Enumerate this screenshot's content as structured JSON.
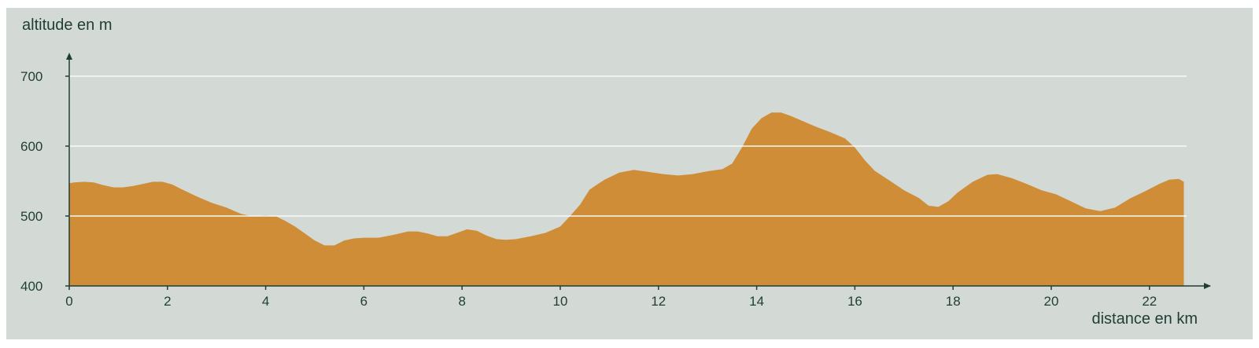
{
  "chart_data": {
    "type": "area",
    "ylabel": "altitude en m",
    "xlabel": "distance en km",
    "xlim": [
      0,
      23.2
    ],
    "ylim": [
      400,
      730
    ],
    "x_ticks": [
      0,
      2,
      4,
      6,
      8,
      10,
      12,
      14,
      16,
      18,
      20,
      22
    ],
    "y_ticks": [
      400,
      500,
      600,
      700
    ],
    "grid": "horizontal",
    "colors": {
      "background": "#d3dad6",
      "fill": "#d08d37",
      "axis": "#1f3d34",
      "grid": "#f4f6f3"
    },
    "series": [
      {
        "x": [
          0,
          0.1,
          0.3,
          0.5,
          0.7,
          0.9,
          1.1,
          1.3,
          1.5,
          1.7,
          1.9,
          2.1,
          2.3,
          2.6,
          2.9,
          3.2,
          3.5,
          3.7,
          4.0,
          4.2,
          4.4,
          4.6,
          4.8,
          5.0,
          5.2,
          5.4,
          5.6,
          5.8,
          6.0,
          6.3,
          6.6,
          6.9,
          7.1,
          7.3,
          7.5,
          7.7,
          7.9,
          8.1,
          8.3,
          8.5,
          8.7,
          8.9,
          9.1,
          9.4,
          9.7,
          10.0,
          10.2,
          10.4,
          10.6,
          10.9,
          11.2,
          11.5,
          11.8,
          12.1,
          12.4,
          12.7,
          13.0,
          13.3,
          13.5,
          13.7,
          13.9,
          14.1,
          14.3,
          14.5,
          14.7,
          14.9,
          15.2,
          15.5,
          15.8,
          16.0,
          16.2,
          16.4,
          16.7,
          17.0,
          17.3,
          17.5,
          17.7,
          17.9,
          18.1,
          18.4,
          18.7,
          18.9,
          19.2,
          19.5,
          19.8,
          20.1,
          20.4,
          20.7,
          21.0,
          21.3,
          21.6,
          21.9,
          22.2,
          22.4,
          22.6,
          22.7
        ],
        "values": [
          547,
          548,
          549,
          548,
          544,
          541,
          541,
          543,
          546,
          549,
          549,
          545,
          538,
          528,
          519,
          512,
          503,
          500,
          501,
          500,
          493,
          485,
          475,
          465,
          458,
          458,
          465,
          468,
          469,
          469,
          473,
          478,
          478,
          475,
          471,
          471,
          476,
          481,
          479,
          472,
          467,
          466,
          467,
          471,
          476,
          485,
          500,
          516,
          538,
          552,
          562,
          566,
          563,
          560,
          558,
          560,
          564,
          567,
          575,
          598,
          625,
          640,
          648,
          648,
          643,
          637,
          628,
          620,
          611,
          598,
          580,
          565,
          551,
          537,
          526,
          515,
          513,
          521,
          534,
          549,
          559,
          560,
          554,
          546,
          537,
          531,
          521,
          511,
          507,
          512,
          525,
          535,
          546,
          552,
          553,
          549
        ]
      }
    ]
  }
}
